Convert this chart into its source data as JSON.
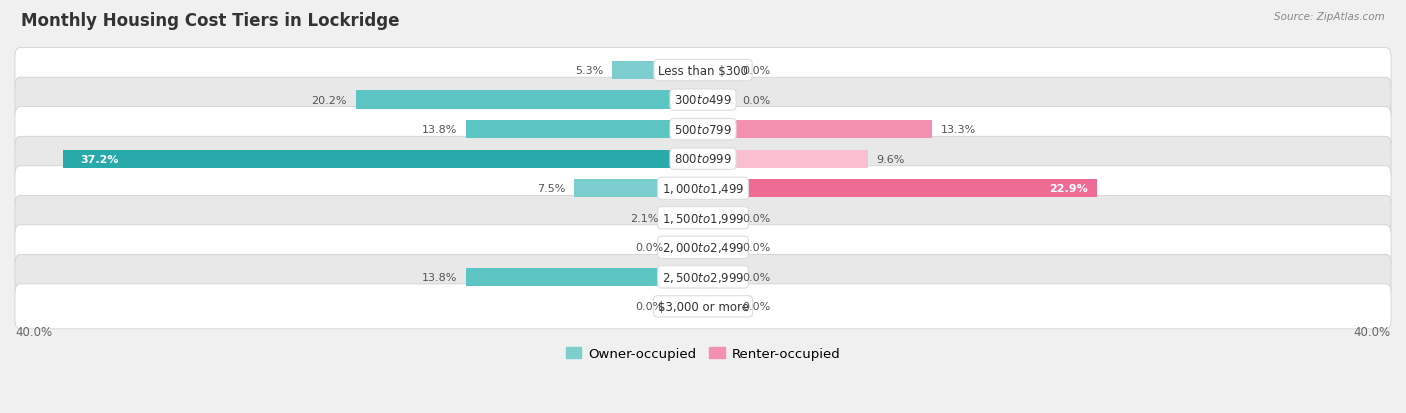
{
  "title": "Monthly Housing Cost Tiers in Lockridge",
  "source": "Source: ZipAtlas.com",
  "categories": [
    "Less than $300",
    "$300 to $499",
    "$500 to $799",
    "$800 to $999",
    "$1,000 to $1,499",
    "$1,500 to $1,999",
    "$2,000 to $2,499",
    "$2,500 to $2,999",
    "$3,000 or more"
  ],
  "owner_values": [
    5.3,
    20.2,
    13.8,
    37.2,
    7.5,
    2.1,
    0.0,
    13.8,
    0.0
  ],
  "renter_values": [
    0.0,
    0.0,
    13.3,
    9.6,
    22.9,
    0.0,
    0.0,
    0.0,
    0.0
  ],
  "owner_colors": [
    "#7DCFCF",
    "#5DC4C4",
    "#5DC4C4",
    "#29AAAA",
    "#7DCFCF",
    "#7DCFCF",
    "#A8DEDE",
    "#5DC4C4",
    "#A8DEDE"
  ],
  "renter_colors": [
    "#F9BFD0",
    "#F9BFD0",
    "#F490AF",
    "#F9BFD0",
    "#EE6B93",
    "#F9BFD0",
    "#F9BFD0",
    "#F9BFD0",
    "#F9BFD0"
  ],
  "owner_stub_color": "#A8DEDE",
  "renter_stub_color": "#F9BFD0",
  "bg_color": "#f0f0f0",
  "row_bg_even": "#ffffff",
  "row_bg_odd": "#e8e8e8",
  "axis_limit": 40.0,
  "stub_val": 1.8,
  "bar_height": 0.62,
  "legend_owner": "Owner-occupied",
  "legend_renter": "Renter-occupied",
  "title_fontsize": 12,
  "label_fontsize": 8.5,
  "value_fontsize": 8.0
}
